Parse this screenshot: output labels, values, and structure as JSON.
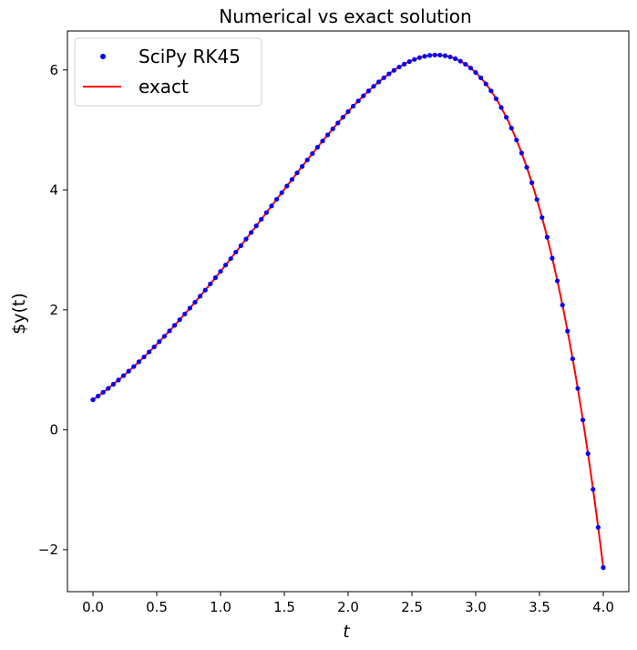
{
  "chart_data": {
    "type": "line",
    "title": "Numerical vs exact solution",
    "xlabel": "t",
    "ylabel": "$y(t)",
    "xlim": [
      -0.2,
      4.2
    ],
    "ylim": [
      -2.7,
      6.65
    ],
    "xticks": [
      0.0,
      0.5,
      1.0,
      1.5,
      2.0,
      2.5,
      3.0,
      3.5,
      4.0
    ],
    "xtick_labels": [
      "0.0",
      "0.5",
      "1.0",
      "1.5",
      "2.0",
      "2.5",
      "3.0",
      "3.5",
      "4.0"
    ],
    "yticks": [
      -2,
      0,
      2,
      4,
      6
    ],
    "ytick_labels": [
      "−2",
      "0",
      "2",
      "4",
      "6"
    ],
    "grid": false,
    "legend": {
      "position": "top-left",
      "entries": [
        "SciPy RK45",
        "exact"
      ]
    },
    "series": [
      {
        "name": "SciPy RK45",
        "style": "markers",
        "color": "#0000ff",
        "t_range": [
          0.0,
          4.0
        ],
        "num_points": 101
      },
      {
        "name": "exact",
        "style": "line",
        "color": "#ff0000",
        "t_range": [
          0.0,
          4.0
        ],
        "num_points": 401
      }
    ]
  }
}
